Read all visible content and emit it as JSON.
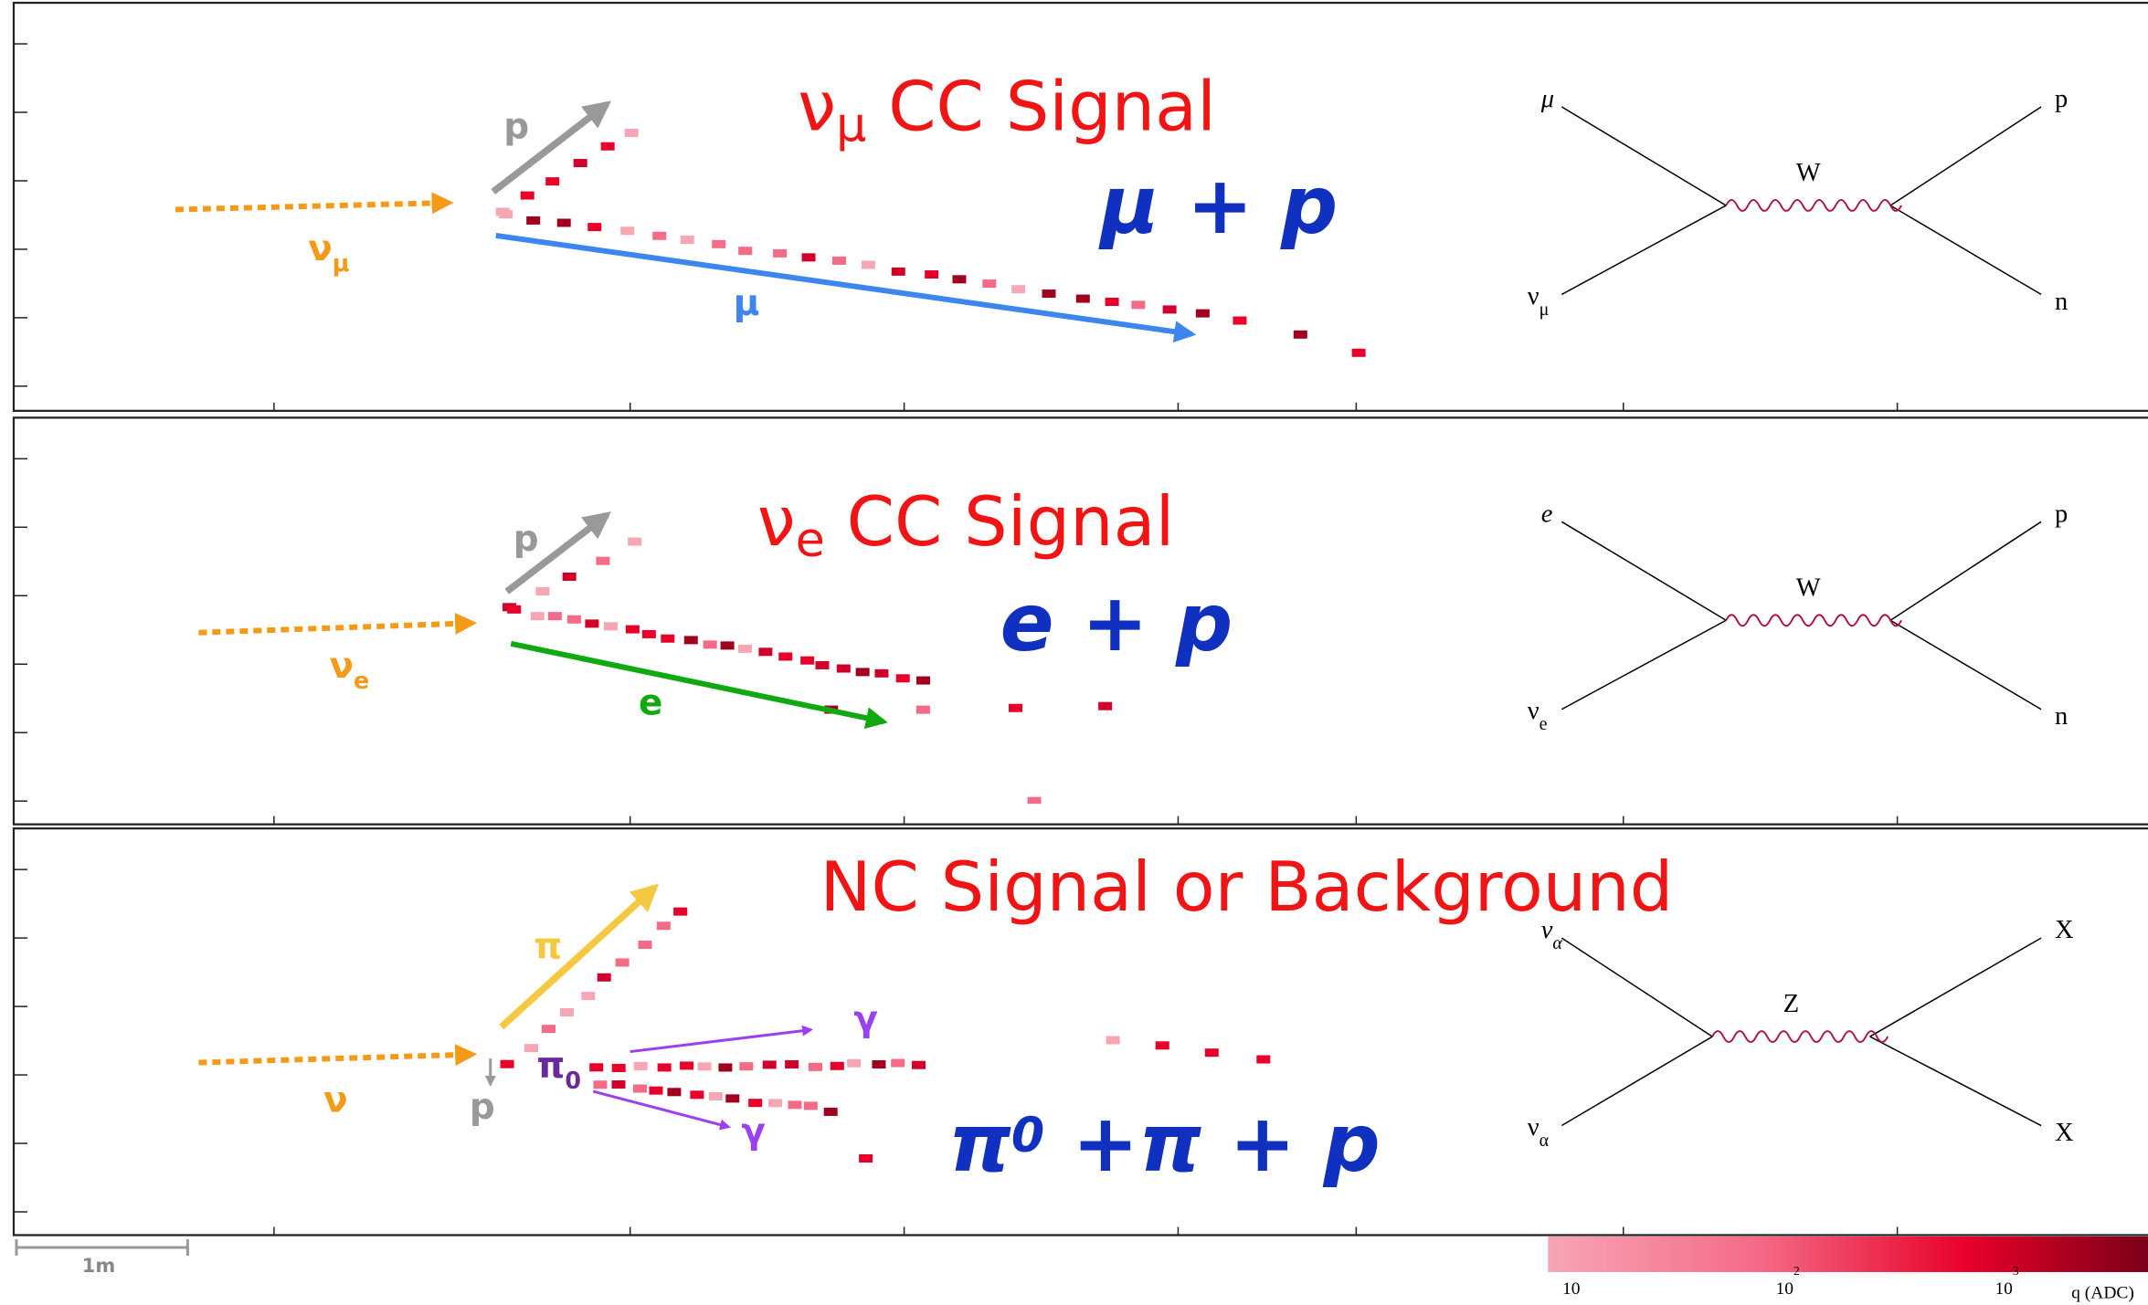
{
  "panels": [
    {
      "title": {
        "base": "ν",
        "sub": "μ",
        "rest": " CC Signal"
      },
      "products": "μ + p",
      "labels": {
        "proton": "p",
        "neutrino": {
          "base": "ν",
          "sub": "μ"
        },
        "lepton": "μ"
      },
      "feynman": {
        "top_left": "μ",
        "top_right": "p",
        "boson": "W",
        "bottom_left": {
          "base": "ν",
          "sub": "μ"
        },
        "bottom_right": "n"
      }
    },
    {
      "title": {
        "base": "ν",
        "sub": "e",
        "rest": " CC Signal"
      },
      "products": "e + p",
      "labels": {
        "proton": "p",
        "neutrino": {
          "base": "ν",
          "sub": "e"
        },
        "lepton": "e"
      },
      "feynman": {
        "top_left": "e",
        "top_right": "p",
        "boson": "W",
        "bottom_left": {
          "base": "ν",
          "sub": "e"
        },
        "bottom_right": "n"
      }
    },
    {
      "title": {
        "rest": "NC Signal or Background"
      },
      "products": {
        "base": "π",
        "sup": "0",
        "rest": " +π + p"
      },
      "labels": {
        "pion": "π",
        "neutrino": "ν",
        "proton": "p",
        "pi0": {
          "base": "π",
          "sub": "0"
        },
        "gamma1": "γ",
        "gamma2": "γ"
      },
      "feynman": {
        "top_left": {
          "base": "ν",
          "sub": "α"
        },
        "top_right": "X",
        "boson": "Z",
        "bottom_left": {
          "base": "ν",
          "sub": "α"
        },
        "bottom_right": "X"
      }
    }
  ],
  "colorbar": {
    "ticks": [
      {
        "base": "10"
      },
      {
        "base": "10",
        "sup": "2"
      },
      {
        "base": "10",
        "sup": "3"
      }
    ],
    "label": "q (ADC)"
  },
  "scale_bar": "1m"
}
